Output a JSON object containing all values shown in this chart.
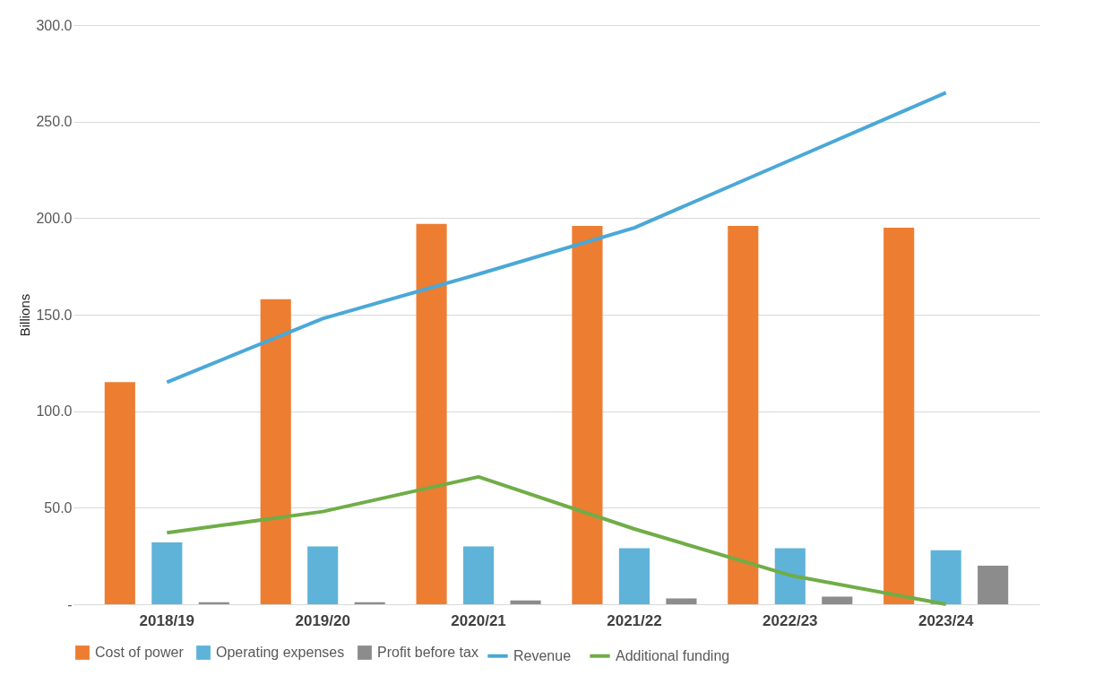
{
  "chart_data": {
    "type": "bar",
    "ylabel": "Billions",
    "categories": [
      "2018/19",
      "2019/20",
      "2020/21",
      "2021/22",
      "2022/23",
      "2023/24"
    ],
    "series": [
      {
        "name": "Cost of power",
        "color": "#ed7d31",
        "values": [
          115,
          158,
          197,
          196,
          196,
          195
        ]
      },
      {
        "name": "Operating expenses",
        "color": "#5fb3d9",
        "values": [
          32,
          30,
          30,
          29,
          29,
          28
        ]
      },
      {
        "name": "Profit before tax",
        "color": "#8c8c8c",
        "values": [
          1,
          1,
          2,
          3,
          4,
          20
        ]
      },
      {
        "name": "Revenue",
        "type": "line",
        "color": "#4aa8d8",
        "values": [
          115,
          148,
          171,
          195,
          230,
          265
        ]
      },
      {
        "name": "Additional funding",
        "type": "line",
        "color": "#70ad47",
        "values": [
          37,
          48,
          66,
          39,
          15,
          0
        ]
      }
    ],
    "ylim": [
      0,
      300
    ],
    "yticks": [
      {
        "value": 0,
        "label": "-"
      },
      {
        "value": 50,
        "label": "50.0"
      },
      {
        "value": 100,
        "label": "100.0"
      },
      {
        "value": 150,
        "label": "150.0"
      },
      {
        "value": 200,
        "label": "200.0"
      },
      {
        "value": 250,
        "label": "250.0"
      },
      {
        "value": 300,
        "label": "300.0"
      }
    ],
    "grid": "y",
    "legend": "bottom",
    "marker": "none",
    "line_style": "solid"
  }
}
